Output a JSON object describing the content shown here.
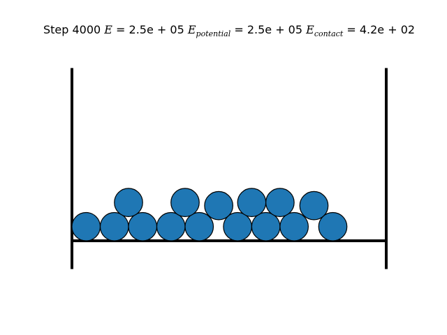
{
  "title": {
    "step_label": "Step 4000",
    "energy_symbol": "E",
    "energy_value": " = 2.5e + 05 ",
    "potential_symbol": "E",
    "potential_subscript": "potential",
    "potential_value": " = 2.5e + 05 ",
    "contact_symbol": "E",
    "contact_subscript": "contact",
    "contact_value": " = 4.2e + 02"
  },
  "colors": {
    "particle_fill": "#1f77b4",
    "particle_edge": "#000000",
    "wall": "#000000"
  },
  "chart_data": {
    "type": "scatter",
    "description_free": true,
    "particles": [
      {
        "x": 0.45,
        "y": 0.45
      },
      {
        "x": 1.35,
        "y": 0.45
      },
      {
        "x": 2.25,
        "y": 0.45
      },
      {
        "x": 3.15,
        "y": 0.45
      },
      {
        "x": 4.05,
        "y": 0.45
      },
      {
        "x": 5.27,
        "y": 0.45
      },
      {
        "x": 6.17,
        "y": 0.45
      },
      {
        "x": 7.07,
        "y": 0.45
      },
      {
        "x": 8.3,
        "y": 0.45
      },
      {
        "x": 1.8,
        "y": 1.22
      },
      {
        "x": 3.6,
        "y": 1.22
      },
      {
        "x": 4.67,
        "y": 1.12
      },
      {
        "x": 5.72,
        "y": 1.22
      },
      {
        "x": 6.62,
        "y": 1.22
      },
      {
        "x": 7.7,
        "y": 1.12
      }
    ],
    "particle_radius": 0.45,
    "xlim": [
      0,
      10
    ],
    "floor_y": 0,
    "walls": {
      "left_x": 0,
      "right_x": 10,
      "bottom": -0.9,
      "top": 5.5
    }
  }
}
